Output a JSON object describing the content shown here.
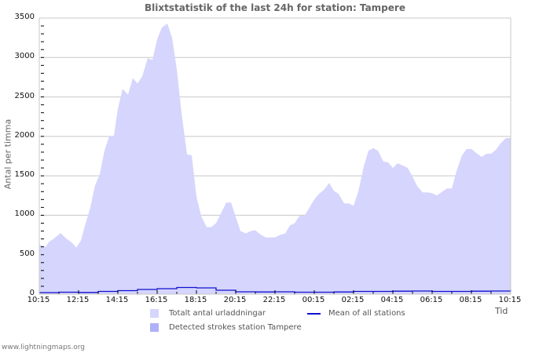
{
  "chart_data": {
    "type": "area",
    "title": "Blixtstatistik of the last 24h for station: Tampere",
    "xlabel": "Tid",
    "ylabel": "Antal per timma",
    "ylim": [
      0,
      3500
    ],
    "yticks": [
      0,
      500,
      1000,
      1500,
      2000,
      2500,
      3000,
      3500
    ],
    "xticks": [
      "10:15",
      "12:15",
      "14:15",
      "16:15",
      "18:15",
      "20:15",
      "22:15",
      "00:15",
      "02:15",
      "04:15",
      "06:15",
      "08:15",
      "10:15"
    ],
    "grid": true,
    "legend_position": "bottom",
    "series": [
      {
        "name": "Totalt antal urladdningar",
        "type": "area",
        "color": "#d5d5fd",
        "x_hours": [
          0,
          0.32,
          0.48,
          0.72,
          1.08,
          1.4,
          1.68,
          1.88,
          2.12,
          2.36,
          2.6,
          2.84,
          3.08,
          3.32,
          3.56,
          3.8,
          4.0,
          4.24,
          4.52,
          4.76,
          5.0,
          5.24,
          5.52,
          5.76,
          6.0,
          6.24,
          6.52,
          6.76,
          7.0,
          7.24,
          7.52,
          7.76,
          8.0,
          8.24,
          8.52,
          8.76,
          9.0,
          9.24,
          9.52,
          9.76,
          10.0,
          10.24,
          10.52,
          10.76,
          11.0,
          11.24,
          11.52,
          11.76,
          12.0,
          12.24,
          12.52,
          12.76,
          13.0,
          13.24,
          13.52,
          13.76,
          14.0,
          14.24,
          14.52,
          14.76,
          15.0,
          15.24,
          15.52,
          15.76,
          16.0,
          16.24,
          16.52,
          16.76,
          17.0,
          17.24,
          17.52,
          17.76,
          18.0,
          18.24,
          18.52,
          18.76,
          19.0,
          19.24,
          19.52,
          19.76,
          20.0,
          20.24,
          20.52,
          20.76,
          21.0,
          21.24,
          21.52,
          21.76,
          22.0,
          22.24,
          22.52,
          22.76,
          23.0,
          23.24,
          23.52,
          23.76,
          24.0
        ],
        "values": [
          626,
          600,
          660,
          700,
          775,
          700,
          650,
          590,
          680,
          900,
          1100,
          1380,
          1520,
          1820,
          2000,
          2010,
          2350,
          2600,
          2530,
          2740,
          2670,
          2760,
          2990,
          2970,
          3230,
          3380,
          3430,
          3250,
          2850,
          2300,
          1770,
          1760,
          1240,
          990,
          850,
          850,
          900,
          1020,
          1160,
          1160,
          980,
          800,
          770,
          800,
          810,
          760,
          720,
          720,
          720,
          750,
          770,
          870,
          900,
          990,
          1000,
          1100,
          1200,
          1270,
          1330,
          1410,
          1310,
          1270,
          1150,
          1150,
          1120,
          1300,
          1620,
          1820,
          1850,
          1820,
          1680,
          1670,
          1600,
          1660,
          1630,
          1600,
          1490,
          1370,
          1290,
          1290,
          1280,
          1250,
          1300,
          1340,
          1340,
          1560,
          1760,
          1840,
          1840,
          1790,
          1740,
          1780,
          1780,
          1830,
          1920,
          1980,
          1980
        ]
      },
      {
        "name": "Detected strokes station Tampere",
        "type": "area",
        "color": "#b0b0f8",
        "values": []
      },
      {
        "name": "Mean of all stations",
        "type": "line",
        "color": "#1010d0",
        "x_hours": [
          0,
          1,
          2,
          3,
          4,
          5,
          6,
          7,
          8,
          9,
          10,
          11,
          12,
          13,
          14,
          15,
          16,
          17,
          18,
          19,
          20,
          21,
          22,
          23,
          24
        ],
        "values": [
          10,
          15,
          12,
          25,
          35,
          50,
          60,
          75,
          70,
          40,
          20,
          18,
          20,
          15,
          15,
          18,
          25,
          25,
          28,
          30,
          25,
          25,
          28,
          30,
          45
        ]
      }
    ]
  },
  "legend": {
    "item1": "Totalt antal urladdningar",
    "item2": "Detected strokes station Tampere",
    "item3": "Mean of all stations"
  },
  "footer": "www.lightningmaps.org",
  "colors": {
    "total_fill": "#d5d5fd",
    "station_fill": "#b0b0f8",
    "mean_line": "#1010d0",
    "grid": "#c8c8c8",
    "axis": "#c8c8c8"
  }
}
